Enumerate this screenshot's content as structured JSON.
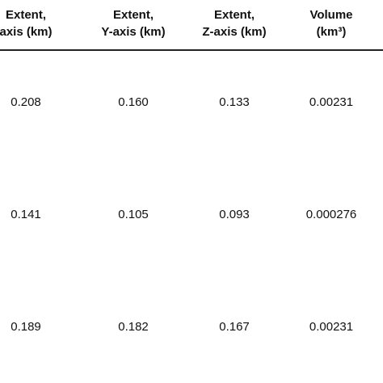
{
  "table": {
    "header": [
      [
        "Extent,",
        "axis (km)"
      ],
      [
        "Extent,",
        "Y-axis (km)"
      ],
      [
        "Extent,",
        "Z-axis (km)"
      ],
      [
        "Volume",
        "(km³)"
      ]
    ],
    "rows": [
      [
        "0.208",
        "0.160",
        "0.133",
        "0.00231"
      ],
      [
        "0.141",
        "0.105",
        "0.093",
        "0.000276"
      ],
      [
        "0.189",
        "0.182",
        "0.167",
        "0.00231"
      ]
    ]
  }
}
